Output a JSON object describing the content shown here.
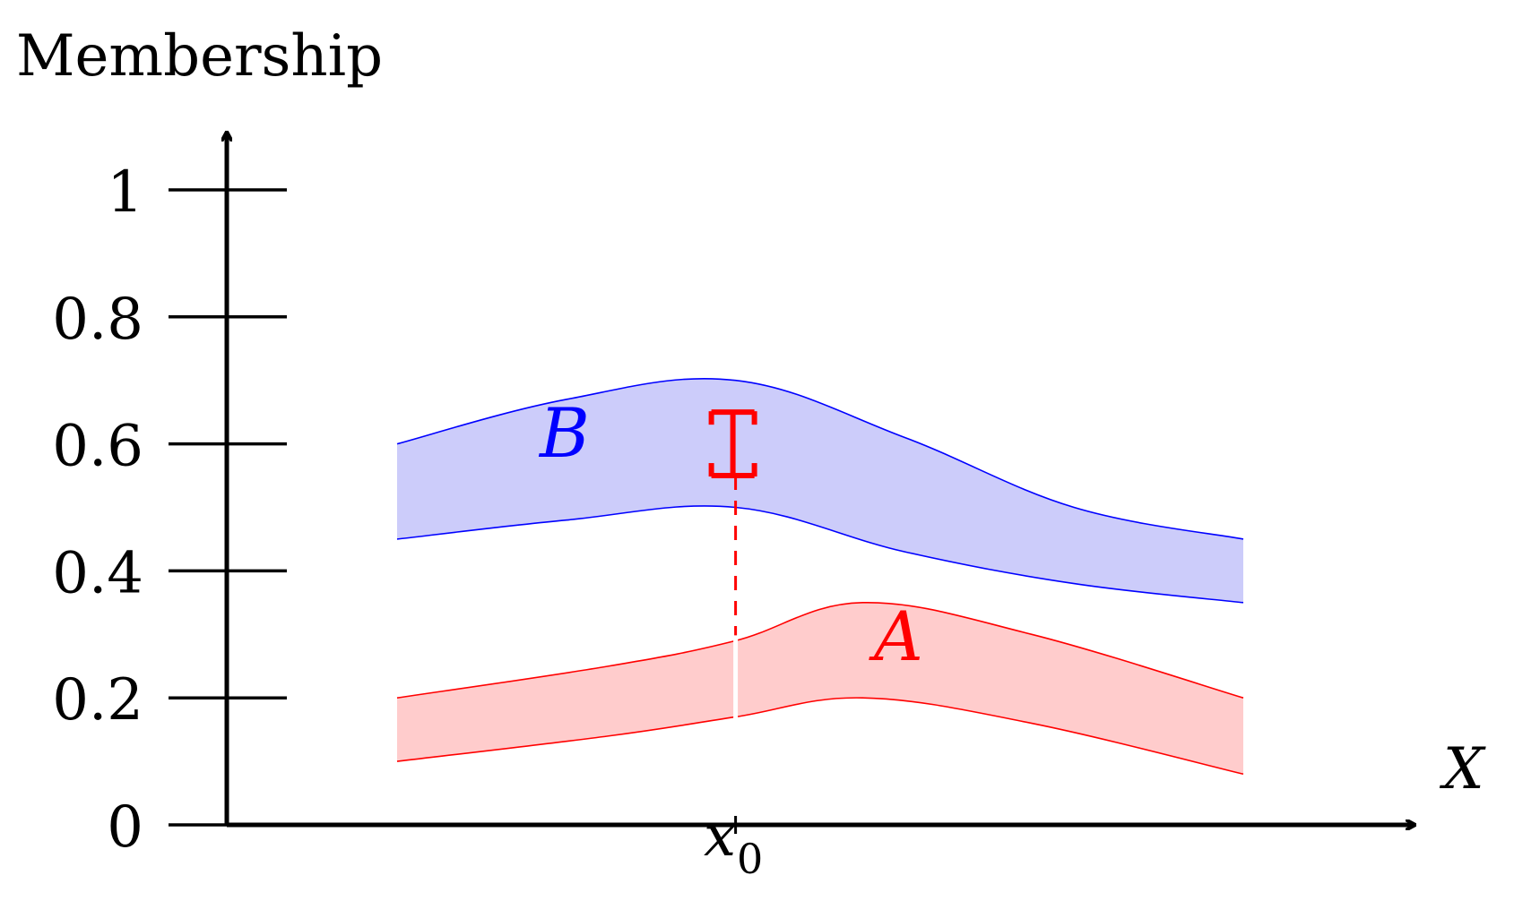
{
  "chart_data": {
    "type": "area",
    "title": "",
    "ylabel": "Membership",
    "xlabel": "X",
    "ylim": [
      0,
      1.1
    ],
    "yticks": [
      "0",
      "0.2",
      "0.4",
      "0.6",
      "0.8",
      "1"
    ],
    "ytick_values": [
      0,
      0.2,
      0.4,
      0.6,
      0.8,
      1
    ],
    "x_marker_label": "x",
    "x_marker_subscript": "0",
    "x_marker_value": 0.4,
    "colors": {
      "A": "#ff0000",
      "A_fill": "#ffcccc",
      "B": "#0000ff",
      "B_fill": "#ccccfa",
      "axis": "#000000",
      "gap": "#ff0000"
    },
    "series": [
      {
        "name": "A",
        "x": [
          0,
          0.25,
          0.4,
          0.55,
          0.75,
          1.0
        ],
        "upper": [
          0.2,
          0.25,
          0.29,
          0.35,
          0.3,
          0.2
        ],
        "lower": [
          0.1,
          0.14,
          0.17,
          0.2,
          0.16,
          0.08
        ]
      },
      {
        "name": "B",
        "x": [
          0,
          0.2,
          0.4,
          0.6,
          0.8,
          1.0
        ],
        "upper": [
          0.6,
          0.67,
          0.7,
          0.61,
          0.5,
          0.45
        ],
        "lower": [
          0.45,
          0.48,
          0.5,
          0.43,
          0.38,
          0.35
        ]
      }
    ],
    "annotation": {
      "type": "interval-gap",
      "x": 0.4,
      "from": 0.55,
      "to": 0.65
    }
  }
}
